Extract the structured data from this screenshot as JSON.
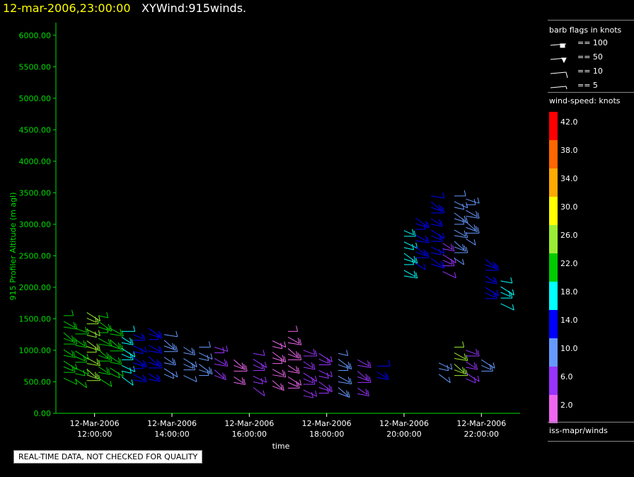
{
  "header": {
    "datetime": "12-mar-2006,23:00:00",
    "title": "XYWind:915winds."
  },
  "notice": "REAL-TIME DATA, NOT CHECKED FOR QUALITY",
  "legend": {
    "barb_title": "barb flags in knots",
    "barb_items": [
      "== 100",
      "== 50",
      "== 10",
      "== 5"
    ],
    "speed_title": "wind-speed: knots",
    "speed_bins": [
      {
        "label": "42.0",
        "color": "#ff0000"
      },
      {
        "label": "38.0",
        "color": "#ff6600"
      },
      {
        "label": "34.0",
        "color": "#ffaa00"
      },
      {
        "label": "30.0",
        "color": "#ffff00"
      },
      {
        "label": "26.0",
        "color": "#99ee33"
      },
      {
        "label": "22.0",
        "color": "#00cc00"
      },
      {
        "label": "18.0",
        "color": "#00ffff"
      },
      {
        "label": "14.0",
        "color": "#0000ff"
      },
      {
        "label": "10.0",
        "color": "#6699ff"
      },
      {
        "label": "6.0",
        "color": "#9933ff"
      },
      {
        "label": "2.0",
        "color": "#ee66ee"
      }
    ],
    "source": "iss-mapr/winds"
  },
  "chart_data": {
    "type": "scatter",
    "ylabel": "915 Profiler Altitude (m agl)",
    "xlabel": "time",
    "ylim": [
      0,
      6200
    ],
    "yticks": [
      "0.00",
      "500.00",
      "1000.00",
      "1500.00",
      "2000.00",
      "2500.00",
      "3000.00",
      "3500.00",
      "4000.00",
      "4500.00",
      "5000.00",
      "5500.00",
      "6000.00"
    ],
    "xticks": [
      {
        "date": "12-Mar-2006",
        "time": "12:00:00",
        "hour": 12
      },
      {
        "date": "12-Mar-2006",
        "time": "14:00:00",
        "hour": 14
      },
      {
        "date": "12-Mar-2006",
        "time": "16:00:00",
        "hour": 16
      },
      {
        "date": "12-Mar-2006",
        "time": "18:00:00",
        "hour": 18
      },
      {
        "date": "12-Mar-2006",
        "time": "20:00:00",
        "hour": 20
      },
      {
        "date": "12-Mar-2006",
        "time": "22:00:00",
        "hour": 22
      }
    ],
    "xlim_hours": [
      11.0,
      23.0
    ],
    "series": [
      {
        "hour": 11.2,
        "top": 1550,
        "bottom": 500,
        "speed": 24
      },
      {
        "hour": 11.5,
        "top": 1350,
        "bottom": 500,
        "speed": 24
      },
      {
        "hour": 11.8,
        "top": 1600,
        "bottom": 500,
        "speed": 26
      },
      {
        "hour": 12.1,
        "top": 1550,
        "bottom": 500,
        "speed": 24
      },
      {
        "hour": 12.4,
        "top": 1350,
        "bottom": 550,
        "speed": 22
      },
      {
        "hour": 12.7,
        "top": 1300,
        "bottom": 550,
        "speed": 18
      },
      {
        "hour": 13.0,
        "top": 1250,
        "bottom": 500,
        "speed": 14
      },
      {
        "hour": 13.4,
        "top": 1350,
        "bottom": 500,
        "speed": 14
      },
      {
        "hour": 13.8,
        "top": 1250,
        "bottom": 550,
        "speed": 12
      },
      {
        "hour": 14.3,
        "top": 1050,
        "bottom": 550,
        "speed": 10
      },
      {
        "hour": 14.7,
        "top": 1050,
        "bottom": 550,
        "speed": 10
      },
      {
        "hour": 15.1,
        "top": 1050,
        "bottom": 550,
        "speed": 6
      },
      {
        "hour": 15.6,
        "top": 850,
        "bottom": 450,
        "speed": 4
      },
      {
        "hour": 16.1,
        "top": 950,
        "bottom": 350,
        "speed": 6
      },
      {
        "hour": 16.6,
        "top": 1150,
        "bottom": 350,
        "speed": 4
      },
      {
        "hour": 17.0,
        "top": 1300,
        "bottom": 350,
        "speed": 4
      },
      {
        "hour": 17.4,
        "top": 1000,
        "bottom": 250,
        "speed": 6
      },
      {
        "hour": 17.8,
        "top": 950,
        "bottom": 250,
        "speed": 8
      },
      {
        "hour": 18.3,
        "top": 950,
        "bottom": 300,
        "speed": 10
      },
      {
        "hour": 18.8,
        "top": 850,
        "bottom": 300,
        "speed": 6
      },
      {
        "hour": 19.3,
        "top": 750,
        "bottom": 500,
        "speed": 14
      },
      {
        "hour": 20.0,
        "top": 2900,
        "bottom": 2100,
        "speed": 18
      },
      {
        "hour": 20.3,
        "top": 3100,
        "bottom": 2300,
        "speed": 16
      },
      {
        "hour": 20.7,
        "top": 3450,
        "bottom": 2300,
        "speed": 14
      },
      {
        "hour": 21.0,
        "top": 2700,
        "bottom": 2250,
        "speed": 6
      },
      {
        "hour": 21.3,
        "top": 3450,
        "bottom": 2400,
        "speed": 12
      },
      {
        "hour": 21.6,
        "top": 3400,
        "bottom": 2700,
        "speed": 10
      },
      {
        "hour": 22.1,
        "top": 2450,
        "bottom": 1800,
        "speed": 14
      },
      {
        "hour": 22.5,
        "top": 2100,
        "bottom": 1700,
        "speed": 20
      },
      {
        "hour": 20.9,
        "top": 800,
        "bottom": 550,
        "speed": 10
      },
      {
        "hour": 21.3,
        "top": 1050,
        "bottom": 550,
        "speed": 28
      },
      {
        "hour": 21.6,
        "top": 1000,
        "bottom": 550,
        "speed": 6
      },
      {
        "hour": 22.0,
        "top": 850,
        "bottom": 650,
        "speed": 10
      }
    ]
  }
}
